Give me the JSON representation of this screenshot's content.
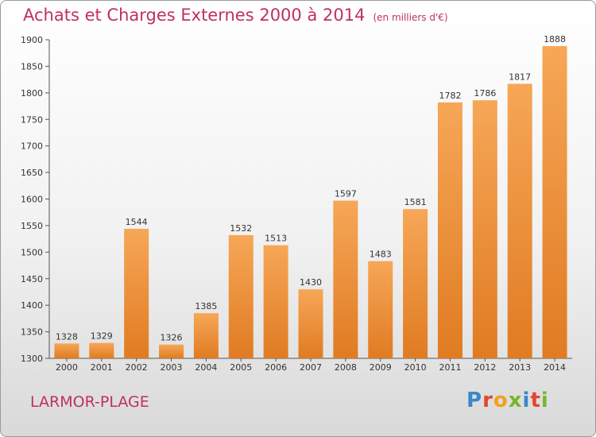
{
  "header": {
    "title": "Achats et Charges Externes 2000 à 2014",
    "unit": "(en milliers d'€)"
  },
  "footer": {
    "place": "LARMOR-PLAGE",
    "logo": "Proxiti"
  },
  "colors": {
    "title": "#c0305e",
    "bar_light": "#f6a757",
    "bar_dark": "#e07b22"
  },
  "chart_data": {
    "type": "bar",
    "title": "Achats et Charges Externes 2000 à 2014",
    "subtitle": "(en milliers d'€)",
    "categories": [
      "2000",
      "2001",
      "2002",
      "2003",
      "2004",
      "2005",
      "2006",
      "2007",
      "2008",
      "2009",
      "2010",
      "2011",
      "2012",
      "2013",
      "2014"
    ],
    "values": [
      1328,
      1329,
      1544,
      1326,
      1385,
      1532,
      1513,
      1430,
      1597,
      1483,
      1581,
      1782,
      1786,
      1817,
      1888
    ],
    "ylim": [
      1300,
      1900
    ],
    "yticks": [
      1300,
      1350,
      1400,
      1450,
      1500,
      1550,
      1600,
      1650,
      1700,
      1750,
      1800,
      1850,
      1900
    ],
    "grid": false,
    "data_labels": true
  }
}
